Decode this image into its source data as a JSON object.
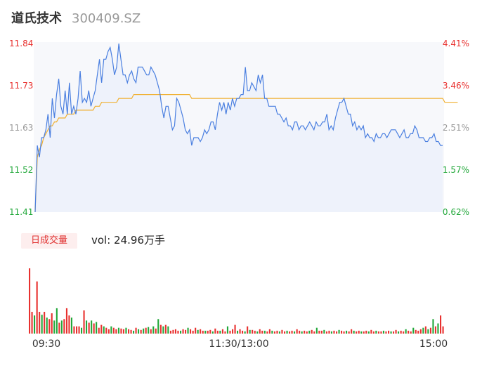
{
  "header": {
    "name": "道氏技术",
    "code": "300409.SZ"
  },
  "colors": {
    "up": "#e8312f",
    "down": "#22a83a",
    "neutral": "#999999",
    "price_line": "#4a7fe0",
    "avg_line": "#f0b030"
  },
  "axes": {
    "price_labels": [
      {
        "text": "11.84",
        "cls": "up"
      },
      {
        "text": "11.73",
        "cls": "up"
      },
      {
        "text": "11.63",
        "cls": "neutral"
      },
      {
        "text": "11.52",
        "cls": "down"
      },
      {
        "text": "11.41",
        "cls": "down"
      }
    ],
    "pct_labels": [
      {
        "text": "4.41%",
        "cls": "up"
      },
      {
        "text": "3.46%",
        "cls": "up"
      },
      {
        "text": "2.51%",
        "cls": "neutral"
      },
      {
        "text": "1.57%",
        "cls": "down"
      },
      {
        "text": "0.62%",
        "cls": "down"
      }
    ],
    "time_labels": [
      "09:30",
      "11:30/13:00",
      "15:00"
    ]
  },
  "volume": {
    "tag": "日成交量",
    "text": "vol: 24.96万手"
  },
  "chart_data": {
    "type": "line",
    "ylim": [
      11.41,
      11.84
    ],
    "price_series": [
      11.41,
      11.58,
      11.55,
      11.6,
      11.6,
      11.62,
      11.66,
      11.6,
      11.7,
      11.65,
      11.71,
      11.75,
      11.68,
      11.66,
      11.72,
      11.66,
      11.74,
      11.66,
      11.68,
      11.66,
      11.7,
      11.77,
      11.69,
      11.7,
      11.69,
      11.72,
      11.68,
      11.7,
      11.72,
      11.76,
      11.8,
      11.74,
      11.8,
      11.8,
      11.82,
      11.83,
      11.8,
      11.76,
      11.78,
      11.84,
      11.8,
      11.76,
      11.76,
      11.74,
      11.76,
      11.77,
      11.75,
      11.74,
      11.78,
      11.78,
      11.78,
      11.77,
      11.76,
      11.76,
      11.78,
      11.77,
      11.76,
      11.74,
      11.72,
      11.68,
      11.65,
      11.68,
      11.68,
      11.65,
      11.62,
      11.63,
      11.7,
      11.69,
      11.67,
      11.65,
      11.62,
      11.61,
      11.62,
      11.58,
      11.6,
      11.6,
      11.6,
      11.59,
      11.6,
      11.62,
      11.61,
      11.62,
      11.64,
      11.64,
      11.62,
      11.66,
      11.69,
      11.67,
      11.69,
      11.66,
      11.69,
      11.67,
      11.7,
      11.68,
      11.7,
      11.7,
      11.71,
      11.71,
      11.78,
      11.72,
      11.72,
      11.74,
      11.73,
      11.72,
      11.76,
      11.74,
      11.76,
      11.7,
      11.7,
      11.68,
      11.68,
      11.68,
      11.68,
      11.66,
      11.66,
      11.65,
      11.64,
      11.65,
      11.63,
      11.63,
      11.62,
      11.64,
      11.64,
      11.62,
      11.63,
      11.63,
      11.62,
      11.63,
      11.64,
      11.63,
      11.62,
      11.64,
      11.63,
      11.63,
      11.64,
      11.64,
      11.66,
      11.62,
      11.63,
      11.62,
      11.65,
      11.67,
      11.69,
      11.69,
      11.7,
      11.68,
      11.66,
      11.66,
      11.63,
      11.64,
      11.62,
      11.63,
      11.62,
      11.63,
      11.6,
      11.61,
      11.6,
      11.6,
      11.59,
      11.61,
      11.6,
      11.6,
      11.61,
      11.61,
      11.6,
      11.61,
      11.62,
      11.62,
      11.62,
      11.61,
      11.6,
      11.61,
      11.62,
      11.6,
      11.6,
      11.61,
      11.61,
      11.63,
      11.62,
      11.6,
      11.6,
      11.6,
      11.59,
      11.59,
      11.6,
      11.6,
      11.61,
      11.59,
      11.59,
      11.58,
      11.58
    ],
    "avg_series": [
      11.41,
      11.55,
      11.57,
      11.58,
      11.6,
      11.61,
      11.62,
      11.63,
      11.63,
      11.64,
      11.64,
      11.65,
      11.65,
      11.65,
      11.65,
      11.66,
      11.66,
      11.66,
      11.66,
      11.67,
      11.67,
      11.67,
      11.67,
      11.67,
      11.67,
      11.67,
      11.67,
      11.67,
      11.68,
      11.68,
      11.68,
      11.69,
      11.69,
      11.69,
      11.69,
      11.69,
      11.69,
      11.69,
      11.69,
      11.7,
      11.7,
      11.7,
      11.7,
      11.7,
      11.7,
      11.7,
      11.71,
      11.71,
      11.71,
      11.71,
      11.71,
      11.71,
      11.71,
      11.71,
      11.71,
      11.71,
      11.71,
      11.71,
      11.71,
      11.71,
      11.71,
      11.71,
      11.71,
      11.71,
      11.71,
      11.71,
      11.71,
      11.71,
      11.71,
      11.71,
      11.71,
      11.71,
      11.71,
      11.7,
      11.7,
      11.7,
      11.7,
      11.7,
      11.7,
      11.7,
      11.7,
      11.7,
      11.7,
      11.7,
      11.7,
      11.7,
      11.7,
      11.7,
      11.7,
      11.7,
      11.7,
      11.7,
      11.7,
      11.7,
      11.7,
      11.7,
      11.7,
      11.7,
      11.7,
      11.7,
      11.7,
      11.7,
      11.7,
      11.7,
      11.7,
      11.7,
      11.7,
      11.7,
      11.7,
      11.7,
      11.7,
      11.7,
      11.7,
      11.7,
      11.7,
      11.7,
      11.7,
      11.7,
      11.7,
      11.7,
      11.7,
      11.7,
      11.7,
      11.7,
      11.7,
      11.7,
      11.7,
      11.7,
      11.7,
      11.7,
      11.7,
      11.7,
      11.7,
      11.7,
      11.7,
      11.7,
      11.7,
      11.7,
      11.7,
      11.7,
      11.7,
      11.7,
      11.7,
      11.7,
      11.7,
      11.7,
      11.7,
      11.7,
      11.7,
      11.7,
      11.7,
      11.7,
      11.7,
      11.7,
      11.7,
      11.7,
      11.7,
      11.7,
      11.7,
      11.7,
      11.7,
      11.7,
      11.7,
      11.7,
      11.7,
      11.7,
      11.7,
      11.7,
      11.7,
      11.7,
      11.7,
      11.7,
      11.7,
      11.7,
      11.7,
      11.7,
      11.7,
      11.7,
      11.7,
      11.7,
      11.7,
      11.7,
      11.7,
      11.7,
      11.7,
      11.7,
      11.7,
      11.7,
      11.7,
      11.7,
      11.7,
      11.69,
      11.69,
      11.69,
      11.69,
      11.69,
      11.69,
      11.69
    ],
    "volume_series": [
      [
        90,
        "up"
      ],
      [
        30,
        "up"
      ],
      [
        25,
        "down"
      ],
      [
        72,
        "up"
      ],
      [
        30,
        "up"
      ],
      [
        26,
        "down"
      ],
      [
        30,
        "up"
      ],
      [
        22,
        "down"
      ],
      [
        20,
        "up"
      ],
      [
        28,
        "up"
      ],
      [
        18,
        "down"
      ],
      [
        35,
        "down"
      ],
      [
        15,
        "up"
      ],
      [
        18,
        "down"
      ],
      [
        20,
        "up"
      ],
      [
        35,
        "up"
      ],
      [
        25,
        "up"
      ],
      [
        22,
        "down"
      ],
      [
        10,
        "up"
      ],
      [
        10,
        "up"
      ],
      [
        10,
        "up"
      ],
      [
        8,
        "down"
      ],
      [
        32,
        "up"
      ],
      [
        18,
        "down"
      ],
      [
        15,
        "up"
      ],
      [
        18,
        "down"
      ],
      [
        14,
        "up"
      ],
      [
        16,
        "down"
      ],
      [
        8,
        "up"
      ],
      [
        12,
        "up"
      ],
      [
        10,
        "down"
      ],
      [
        8,
        "up"
      ],
      [
        6,
        "up"
      ],
      [
        10,
        "down"
      ],
      [
        8,
        "up"
      ],
      [
        6,
        "up"
      ],
      [
        8,
        "down"
      ],
      [
        7,
        "up"
      ],
      [
        6,
        "up"
      ],
      [
        8,
        "down"
      ],
      [
        6,
        "up"
      ],
      [
        5,
        "up"
      ],
      [
        4,
        "down"
      ],
      [
        8,
        "up"
      ],
      [
        6,
        "down"
      ],
      [
        5,
        "up"
      ],
      [
        7,
        "down"
      ],
      [
        8,
        "up"
      ],
      [
        9,
        "down"
      ],
      [
        6,
        "up"
      ],
      [
        10,
        "down"
      ],
      [
        7,
        "up"
      ],
      [
        20,
        "down"
      ],
      [
        12,
        "up"
      ],
      [
        10,
        "down"
      ],
      [
        12,
        "up"
      ],
      [
        10,
        "down"
      ],
      [
        4,
        "up"
      ],
      [
        5,
        "up"
      ],
      [
        6,
        "up"
      ],
      [
        4,
        "up"
      ],
      [
        4,
        "down"
      ],
      [
        6,
        "up"
      ],
      [
        5,
        "up"
      ],
      [
        8,
        "down"
      ],
      [
        6,
        "up"
      ],
      [
        4,
        "up"
      ],
      [
        8,
        "up"
      ],
      [
        5,
        "down"
      ],
      [
        6,
        "up"
      ],
      [
        4,
        "up"
      ],
      [
        4,
        "down"
      ],
      [
        4,
        "up"
      ],
      [
        5,
        "up"
      ],
      [
        3,
        "down"
      ],
      [
        7,
        "up"
      ],
      [
        4,
        "up"
      ],
      [
        4,
        "down"
      ],
      [
        6,
        "up"
      ],
      [
        3,
        "up"
      ],
      [
        10,
        "down"
      ],
      [
        4,
        "up"
      ],
      [
        6,
        "up"
      ],
      [
        12,
        "up"
      ],
      [
        4,
        "down"
      ],
      [
        6,
        "up"
      ],
      [
        4,
        "up"
      ],
      [
        3,
        "down"
      ],
      [
        10,
        "up"
      ],
      [
        5,
        "down"
      ],
      [
        5,
        "up"
      ],
      [
        4,
        "up"
      ],
      [
        3,
        "down"
      ],
      [
        6,
        "up"
      ],
      [
        4,
        "up"
      ],
      [
        4,
        "down"
      ],
      [
        3,
        "up"
      ],
      [
        6,
        "up"
      ],
      [
        4,
        "down"
      ],
      [
        3,
        "up"
      ],
      [
        4,
        "up"
      ],
      [
        3,
        "down"
      ],
      [
        5,
        "up"
      ],
      [
        3,
        "up"
      ],
      [
        4,
        "down"
      ],
      [
        3,
        "up"
      ],
      [
        4,
        "up"
      ],
      [
        3,
        "down"
      ],
      [
        6,
        "up"
      ],
      [
        4,
        "up"
      ],
      [
        3,
        "down"
      ],
      [
        4,
        "up"
      ],
      [
        3,
        "up"
      ],
      [
        4,
        "down"
      ],
      [
        5,
        "up"
      ],
      [
        3,
        "up"
      ],
      [
        8,
        "down"
      ],
      [
        4,
        "up"
      ],
      [
        4,
        "up"
      ],
      [
        5,
        "down"
      ],
      [
        3,
        "up"
      ],
      [
        4,
        "up"
      ],
      [
        3,
        "down"
      ],
      [
        4,
        "up"
      ],
      [
        3,
        "up"
      ],
      [
        5,
        "down"
      ],
      [
        4,
        "up"
      ],
      [
        3,
        "up"
      ],
      [
        4,
        "down"
      ],
      [
        3,
        "up"
      ],
      [
        6,
        "up"
      ],
      [
        4,
        "down"
      ],
      [
        3,
        "up"
      ],
      [
        4,
        "up"
      ],
      [
        3,
        "down"
      ],
      [
        3,
        "up"
      ],
      [
        4,
        "up"
      ],
      [
        3,
        "down"
      ],
      [
        5,
        "up"
      ],
      [
        3,
        "up"
      ],
      [
        4,
        "down"
      ],
      [
        3,
        "up"
      ],
      [
        3,
        "up"
      ],
      [
        4,
        "down"
      ],
      [
        3,
        "up"
      ],
      [
        4,
        "up"
      ],
      [
        3,
        "down"
      ],
      [
        3,
        "up"
      ],
      [
        5,
        "up"
      ],
      [
        3,
        "down"
      ],
      [
        4,
        "up"
      ],
      [
        3,
        "up"
      ],
      [
        6,
        "down"
      ],
      [
        4,
        "up"
      ],
      [
        3,
        "up"
      ],
      [
        8,
        "down"
      ],
      [
        5,
        "up"
      ],
      [
        4,
        "up"
      ],
      [
        6,
        "up"
      ],
      [
        8,
        "down"
      ],
      [
        10,
        "up"
      ],
      [
        6,
        "down"
      ],
      [
        8,
        "up"
      ],
      [
        20,
        "down"
      ],
      [
        10,
        "up"
      ],
      [
        14,
        "down"
      ],
      [
        25,
        "up"
      ],
      [
        10,
        "up"
      ]
    ],
    "volume_max": 92
  }
}
